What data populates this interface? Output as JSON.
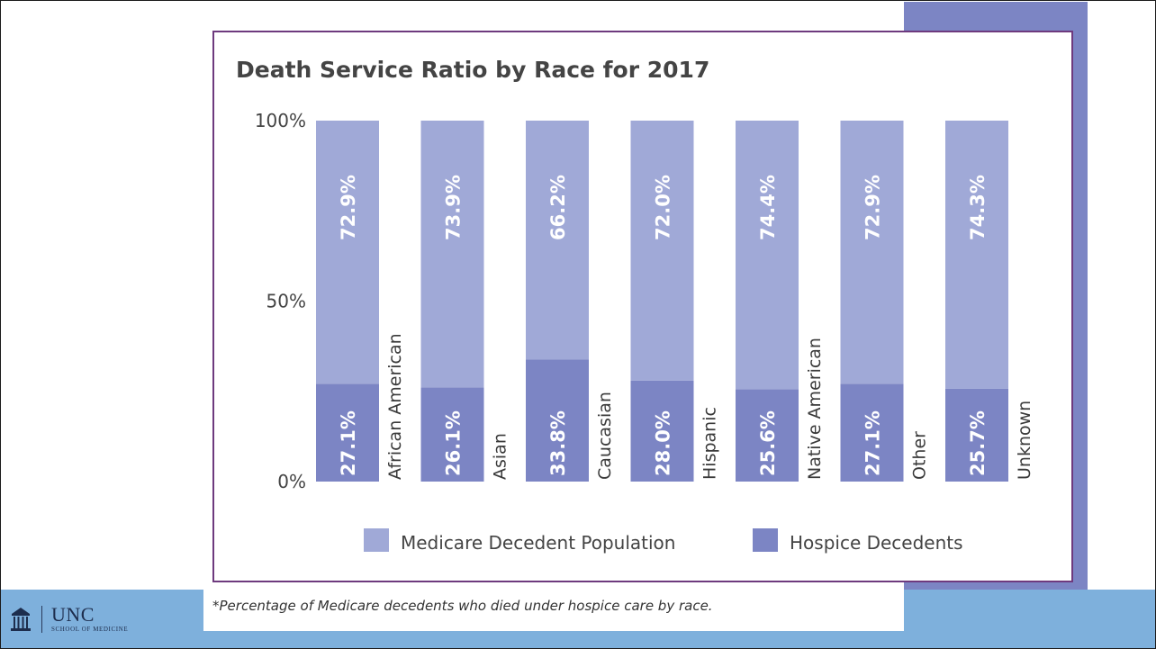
{
  "chart_data": {
    "type": "bar",
    "stacked": true,
    "title": "Death Service Ratio by Race for 2017",
    "xlabel": "",
    "ylabel": "",
    "ylim": [
      0,
      100
    ],
    "y_ticks": [
      "0%",
      "50%",
      "100%"
    ],
    "categories": [
      "African American",
      "Asian",
      "Caucasian",
      "Hispanic",
      "Native American",
      "Other",
      "Unknown"
    ],
    "series": [
      {
        "name": "Hospice Decedents",
        "color": "#7c85c4",
        "values": [
          27.1,
          26.1,
          33.8,
          28.0,
          25.6,
          27.1,
          25.7
        ],
        "labels": [
          "27.1%",
          "26.1%",
          "33.8%",
          "28.0%",
          "25.6%",
          "27.1%",
          "25.7%"
        ]
      },
      {
        "name": "Medicare Decedent Population",
        "color": "#a0a9d7",
        "values": [
          72.9,
          73.9,
          66.2,
          72.0,
          74.4,
          72.9,
          74.3
        ],
        "labels": [
          "72.9%",
          "73.9%",
          "66.2%",
          "72.0%",
          "74.4%",
          "72.9%",
          "74.3%"
        ]
      }
    ],
    "legend": {
      "placement": "bottom",
      "entries": [
        "Medicare Decedent Population",
        "Hospice Decedents"
      ]
    },
    "grid": false
  },
  "footnote": "*Percentage of Medicare decedents who died under hospice care by race.",
  "logo": {
    "main": "UNC",
    "sub": "SCHOOL OF MEDICINE"
  },
  "colors": {
    "frame": "#6e3a7e",
    "accent": "#7c85c4",
    "footer": "#7eb0dc"
  }
}
